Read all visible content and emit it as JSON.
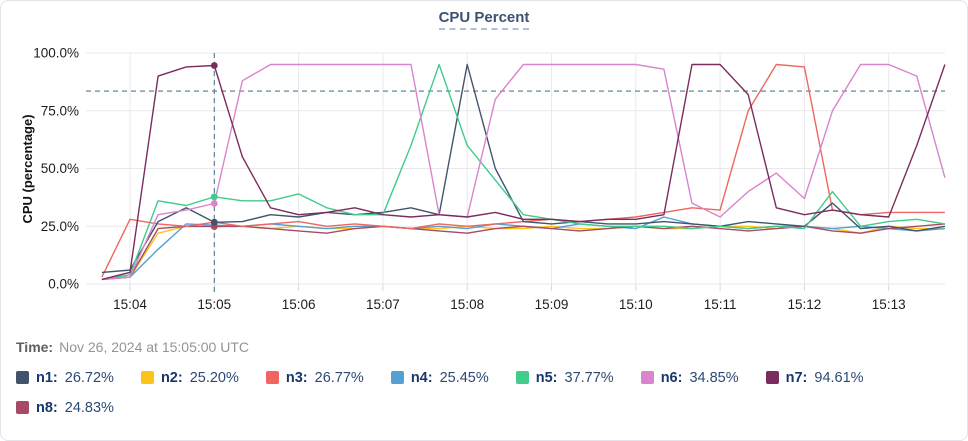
{
  "header": {
    "title": "CPU Percent"
  },
  "time_row": {
    "label": "Time:",
    "value": "Nov 26, 2024 at 15:05:00 UTC"
  },
  "legend": [
    {
      "name": "n1:",
      "value": "26.72%",
      "color": "#42546b"
    },
    {
      "name": "n2:",
      "value": "25.20%",
      "color": "#fcc419"
    },
    {
      "name": "n3:",
      "value": "26.77%",
      "color": "#f0655f"
    },
    {
      "name": "n4:",
      "value": "25.45%",
      "color": "#54a0d2"
    },
    {
      "name": "n5:",
      "value": "37.77%",
      "color": "#40cc8a"
    },
    {
      "name": "n6:",
      "value": "34.85%",
      "color": "#d984cc"
    },
    {
      "name": "n7:",
      "value": "94.61%",
      "color": "#7b2c5e"
    },
    {
      "name": "n8:",
      "value": "24.83%",
      "color": "#a84a63"
    }
  ],
  "chart_data": {
    "type": "line",
    "title": "CPU Percent",
    "xlabel": "",
    "ylabel": "CPU (percentage)",
    "ylim": [
      0,
      100
    ],
    "grid": true,
    "legend_position": "bottom",
    "threshold_percent": 83.5,
    "crosshair_time_seconds": 300,
    "crosshair_time_label": "15:05:00",
    "y_ticks": [
      {
        "v": 100,
        "label": "100.0%"
      },
      {
        "v": 75,
        "label": "75.0%"
      },
      {
        "v": 50,
        "label": "50.0%"
      },
      {
        "v": 25,
        "label": "25.0%"
      },
      {
        "v": 0,
        "label": "0.0%"
      }
    ],
    "x_ticks": [
      {
        "t": 240,
        "label": "15:04"
      },
      {
        "t": 300,
        "label": "15:05"
      },
      {
        "t": 360,
        "label": "15:06"
      },
      {
        "t": 420,
        "label": "15:07"
      },
      {
        "t": 480,
        "label": "15:08"
      },
      {
        "t": 540,
        "label": "15:09"
      },
      {
        "t": 600,
        "label": "15:10"
      },
      {
        "t": 660,
        "label": "15:11"
      },
      {
        "t": 720,
        "label": "15:12"
      },
      {
        "t": 780,
        "label": "15:13"
      }
    ],
    "x_seconds_since_1500": [
      220,
      240,
      260,
      280,
      300,
      320,
      340,
      360,
      380,
      400,
      420,
      440,
      460,
      480,
      500,
      520,
      540,
      560,
      580,
      600,
      620,
      640,
      660,
      680,
      700,
      720,
      740,
      760,
      780,
      800,
      820
    ],
    "series": [
      {
        "name": "n1",
        "color": "#42546b",
        "values": [
          5,
          6,
          27,
          33,
          26.72,
          27,
          30,
          29,
          31,
          30,
          31,
          33,
          30,
          95,
          50,
          27,
          26,
          27,
          26,
          26,
          27,
          26,
          25,
          27,
          26,
          25,
          35,
          24,
          25,
          23,
          25
        ]
      },
      {
        "name": "n2",
        "color": "#fcc419",
        "values": [
          2,
          3,
          22,
          25,
          25.2,
          25,
          24,
          25,
          24,
          24,
          25,
          24,
          24,
          25,
          24,
          24,
          25,
          24,
          24,
          25,
          24,
          24,
          25,
          25,
          24,
          25,
          24,
          22,
          25,
          24,
          24
        ]
      },
      {
        "name": "n3",
        "color": "#f0655f",
        "values": [
          3,
          28,
          26,
          25,
          26.77,
          25,
          26,
          27,
          25,
          26,
          25,
          24,
          26,
          25,
          26,
          27,
          28,
          27,
          28,
          29,
          31,
          33,
          32,
          75,
          95,
          94,
          32,
          30,
          31,
          31,
          31
        ]
      },
      {
        "name": "n4",
        "color": "#54a0d2",
        "values": [
          2,
          3,
          15,
          26,
          25.45,
          25,
          26,
          25,
          24,
          25,
          25,
          24,
          25,
          24,
          26,
          25,
          24,
          26,
          25,
          24,
          29,
          26,
          25,
          24,
          25,
          25,
          24,
          25,
          24,
          23,
          24
        ]
      },
      {
        "name": "n5",
        "color": "#40cc8a",
        "values": [
          2,
          4,
          36,
          34,
          37.77,
          36,
          36,
          39,
          33,
          30,
          30,
          60,
          95,
          60,
          45,
          30,
          28,
          26,
          25,
          25,
          25,
          24,
          25,
          24,
          25,
          24,
          40,
          25,
          27,
          28,
          26
        ]
      },
      {
        "name": "n6",
        "color": "#d984cc",
        "values": [
          2,
          3,
          30,
          32,
          34.85,
          88,
          95,
          95,
          95,
          95,
          95,
          95,
          30,
          29,
          80,
          95,
          95,
          95,
          95,
          95,
          93,
          35,
          29,
          40,
          48,
          37,
          75,
          95,
          95,
          90,
          46
        ]
      },
      {
        "name": "n7",
        "color": "#7b2c5e",
        "values": [
          2,
          5,
          90,
          94,
          94.61,
          55,
          33,
          30,
          31,
          33,
          30,
          29,
          30,
          29,
          31,
          28,
          28,
          27,
          28,
          28,
          30,
          95,
          95,
          82,
          33,
          30,
          32,
          30,
          29,
          60,
          95
        ]
      },
      {
        "name": "n8",
        "color": "#a84a63",
        "values": [
          2,
          3,
          24,
          25,
          24.83,
          25,
          24,
          23,
          22,
          24,
          25,
          24,
          23,
          22,
          24,
          25,
          24,
          23,
          24,
          25,
          24,
          25,
          24,
          23,
          24,
          25,
          23,
          22,
          24,
          25,
          26
        ]
      }
    ],
    "styles": {
      "grid_color": "#e9e9ed",
      "tick_mark_color": "#d9d9de",
      "axis_text_color": "#1d1d1f",
      "dashed_line_color": "#4c7d90"
    }
  }
}
